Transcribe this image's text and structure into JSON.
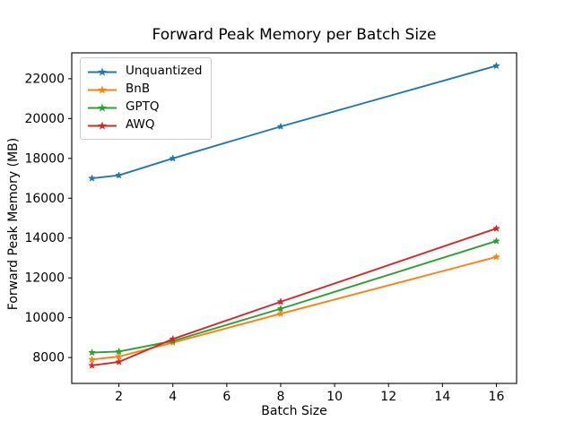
{
  "chart_data": {
    "type": "line",
    "title": "Forward Peak Memory per Batch Size",
    "xlabel": "Batch Size",
    "ylabel": "Forward Peak Memory (MB)",
    "x": [
      1,
      2,
      4,
      8,
      16
    ],
    "series": [
      {
        "name": "Unquantized",
        "color": "#1f77b4",
        "values": [
          17000,
          17150,
          18000,
          19600,
          22650
        ]
      },
      {
        "name": "BnB",
        "color": "#ff7f0e",
        "values": [
          7900,
          8050,
          8750,
          10200,
          13050
        ]
      },
      {
        "name": "GPTQ",
        "color": "#2ca02c",
        "values": [
          8250,
          8300,
          8830,
          10450,
          13850
        ]
      },
      {
        "name": "AWQ",
        "color": "#d62728",
        "values": [
          7600,
          7780,
          8930,
          10800,
          14480
        ]
      }
    ],
    "marker": "star",
    "xlim": [
      0.25,
      16.75
    ],
    "ylim": [
      6700,
      23300
    ],
    "xticks": [
      2,
      4,
      6,
      8,
      10,
      12,
      14,
      16
    ],
    "yticks": [
      8000,
      10000,
      12000,
      14000,
      16000,
      18000,
      20000,
      22000
    ],
    "legend_position": "upper left",
    "grid": false,
    "background": "#ffffff",
    "text_color": "#000000",
    "spine_color": "#000000"
  }
}
